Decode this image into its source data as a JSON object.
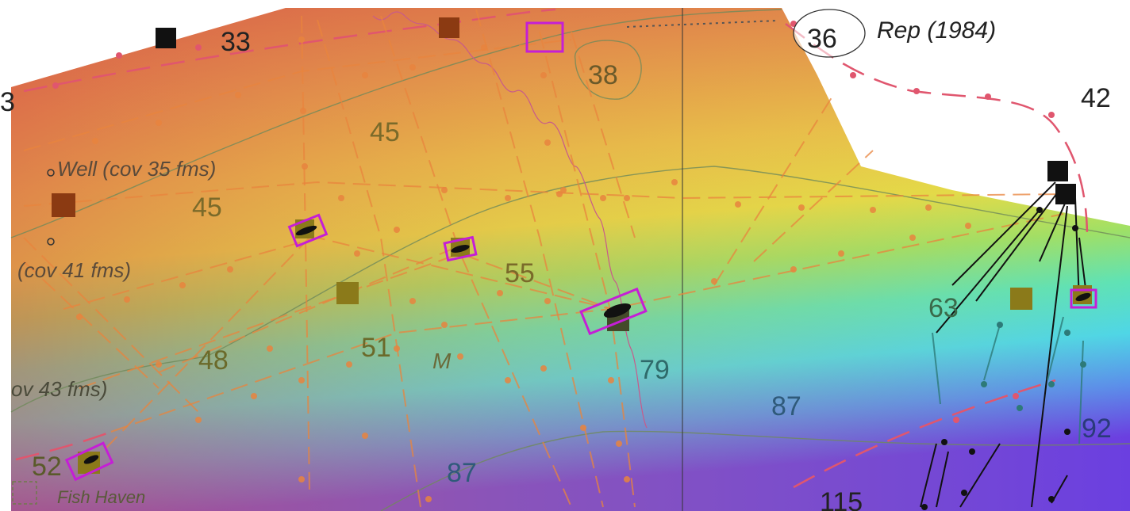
{
  "map": {
    "depth_soundings": {
      "d33": "33",
      "d38": "38",
      "d45a": "45",
      "d45b": "45",
      "d55": "55",
      "d48": "48",
      "d51": "51",
      "d79": "79",
      "d87a": "87",
      "d87b": "87",
      "d63": "63",
      "d92": "92",
      "d52": "52",
      "d115": "115",
      "d42": "42",
      "d36": "36",
      "d3": "3"
    },
    "annotations": {
      "rep": "Rep (1984)",
      "well": "Well (cov 35 fms)",
      "cov41": "(cov 41 fms)",
      "cov43": "ov 43 fms)",
      "fish_haven": "Fish Haven",
      "m": "M"
    },
    "colors": {
      "shallow": "#d9604a",
      "mid": "#e7d23e",
      "green": "#7fe07a",
      "cyan": "#4fd6e6",
      "deep": "#6b3fe0",
      "track_line": "#e0566e",
      "survey_line": "#e8843e",
      "highlight_box": "#c51ed6",
      "contour": "#6f8a5a"
    }
  }
}
